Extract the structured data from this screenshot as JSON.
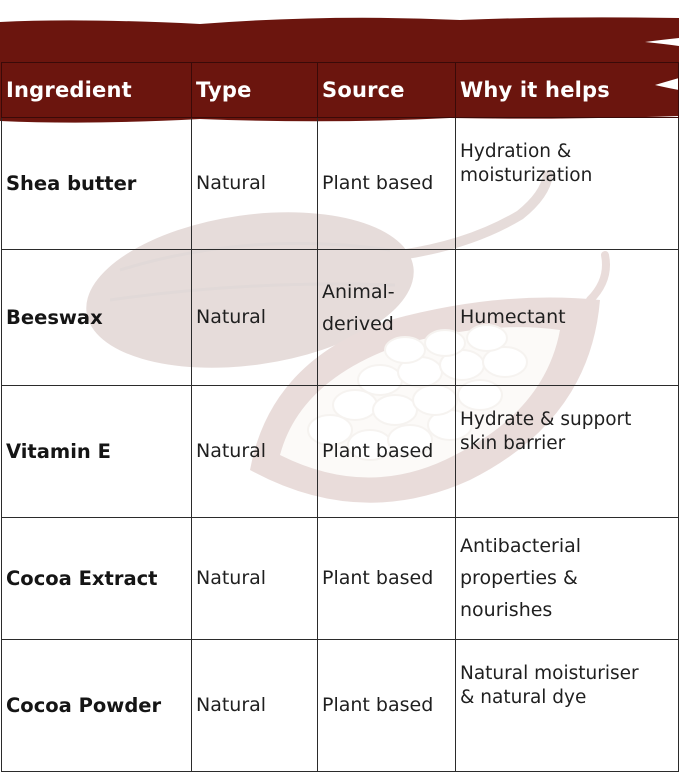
{
  "colors": {
    "header_brown": "#6b150e",
    "text": "#1f1f1f",
    "header_text": "#ffffff",
    "border": "#2b2b2b"
  },
  "background_art": "cocoa-pod-icon",
  "table": {
    "headers": [
      "Ingredient",
      "Type",
      "Source",
      "Why it helps"
    ],
    "rows": [
      {
        "ingredient": "Shea butter",
        "type": "Natural",
        "source": "Plant based",
        "why_lines": [
          "Hydration &",
          "moisturization"
        ]
      },
      {
        "ingredient": "Beeswax",
        "type": "Natural",
        "source_lines": [
          "Animal-",
          "derived"
        ],
        "why_lines": [
          "Humectant"
        ]
      },
      {
        "ingredient": "Vitamin E",
        "type": "Natural",
        "source": "Plant based",
        "why_lines": [
          "Hydrate & support",
          "skin barrier"
        ]
      },
      {
        "ingredient": "Cocoa Extract",
        "type": "Natural",
        "source": "Plant based",
        "why_lines": [
          "Antibacterial",
          "properties &",
          "nourishes"
        ]
      },
      {
        "ingredient": "Cocoa Powder",
        "type": "Natural",
        "source": "Plant based",
        "why_lines": [
          "Natural moisturiser",
          "& natural dye"
        ]
      }
    ]
  }
}
